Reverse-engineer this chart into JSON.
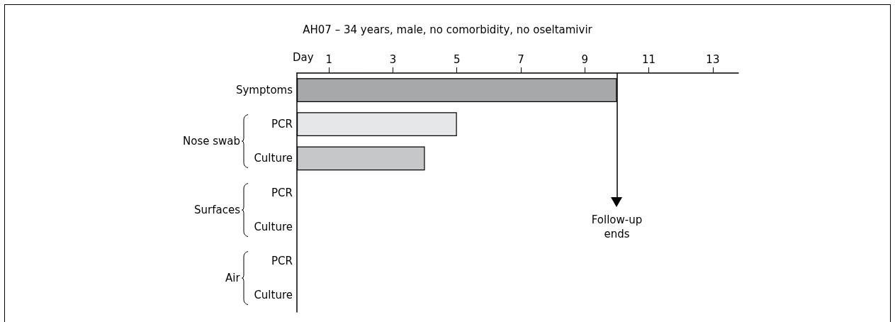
{
  "chart_data": {
    "type": "bar",
    "orientation": "horizontal",
    "title": "AH07 – 34 years, male, no comorbidity, no oseltamivir",
    "xlabel": "Day",
    "categories": [
      "Symptoms",
      "PCR",
      "Culture",
      "PCR",
      "Culture",
      "PCR",
      "Culture"
    ],
    "values": [
      10,
      5,
      4,
      null,
      null,
      null,
      null
    ],
    "colors": [
      "#a7a8aa",
      "#e6e7e8",
      "#c6c7c9",
      null,
      null,
      null,
      null
    ],
    "xlim": [
      0,
      13.8
    ],
    "xticks": [
      1,
      3,
      5,
      7,
      9,
      11,
      13
    ],
    "grid": false,
    "annotations": [
      "Nose swab",
      "Surfaces",
      "Air"
    ],
    "ref_lines": [
      {
        "axis": "x",
        "value": 10,
        "label": "Follow-up\nends",
        "color": "#000000"
      }
    ]
  }
}
